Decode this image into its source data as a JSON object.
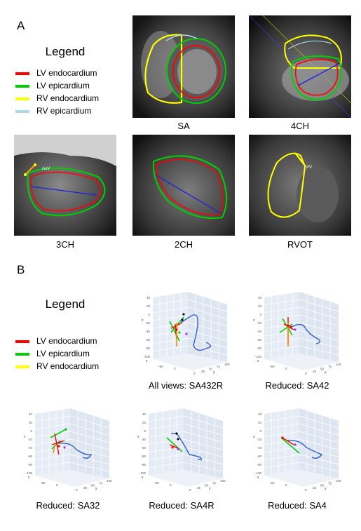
{
  "colors": {
    "lv_endo": "#ff0000",
    "lv_epi": "#00d000",
    "rv_endo": "#ffff00",
    "rv_epi": "#add8e6",
    "long_axis": "#2020e0",
    "surface": "#3a66cc"
  },
  "panel_a": {
    "letter": "A",
    "legend": {
      "title": "Legend",
      "items": [
        {
          "label": "LV endocardium",
          "color": "#ff0000"
        },
        {
          "label": "LV epicardium",
          "color": "#00d000"
        },
        {
          "label": "RV endocardium",
          "color": "#ffff00"
        },
        {
          "label": "RV epicardium",
          "color": "#add8e6"
        }
      ]
    },
    "views": [
      {
        "caption": "SA"
      },
      {
        "caption": "4CH"
      },
      {
        "caption": "3CH",
        "annotation": "AoV"
      },
      {
        "caption": "2CH"
      },
      {
        "caption": "RVOT",
        "annotation": "PV"
      }
    ]
  },
  "panel_b": {
    "letter": "B",
    "legend": {
      "title": "Legend",
      "items": [
        {
          "label": "LV endocardium",
          "color": "#ff0000"
        },
        {
          "label": "LV epicardium",
          "color": "#00d000"
        },
        {
          "label": "RV endocardium",
          "color": "#ffff00"
        }
      ]
    },
    "plots": [
      {
        "caption": "All views: SA432R"
      },
      {
        "caption": "Reduced: SA42"
      },
      {
        "caption": "Reduced: SA32"
      },
      {
        "caption": "Reduced: SA4R"
      },
      {
        "caption": "Reduced: SA4"
      }
    ],
    "z_ticks": [
      "40",
      "20",
      "0",
      "-20",
      "-40",
      "-60",
      "-80",
      "-100"
    ],
    "x_ticks": [
      "-50",
      "0"
    ],
    "y_ticks": [
      "0",
      "25",
      "50",
      "75",
      "100"
    ],
    "axis_letters": {
      "x": "x",
      "y": "y",
      "z": "z"
    }
  }
}
